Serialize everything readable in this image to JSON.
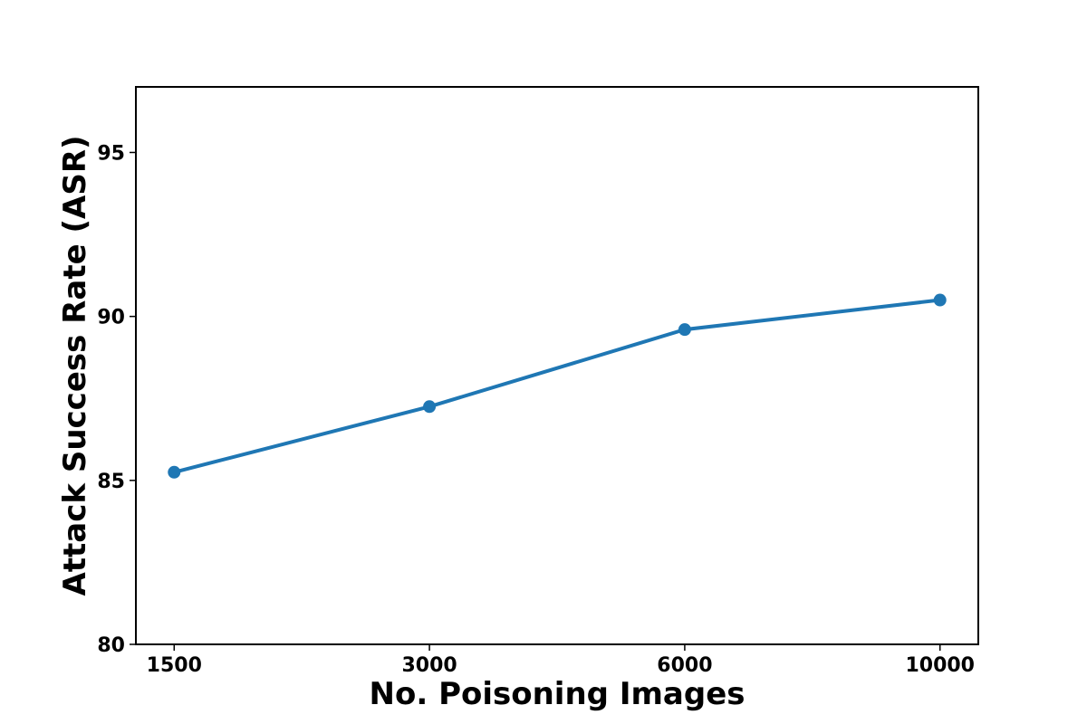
{
  "chart_data": {
    "type": "line",
    "x_label": "No. Poisoning Images",
    "y_label": "Attack Success Rate (ASR)",
    "categories": [
      "1500",
      "3000",
      "6000",
      "10000"
    ],
    "series": [
      {
        "color": "#1f77b4",
        "values": [
          85.25,
          87.25,
          89.6,
          90.5
        ]
      }
    ],
    "ylim": [
      80,
      97
    ],
    "yticks": [
      80,
      85,
      90,
      95
    ],
    "grid": false
  }
}
